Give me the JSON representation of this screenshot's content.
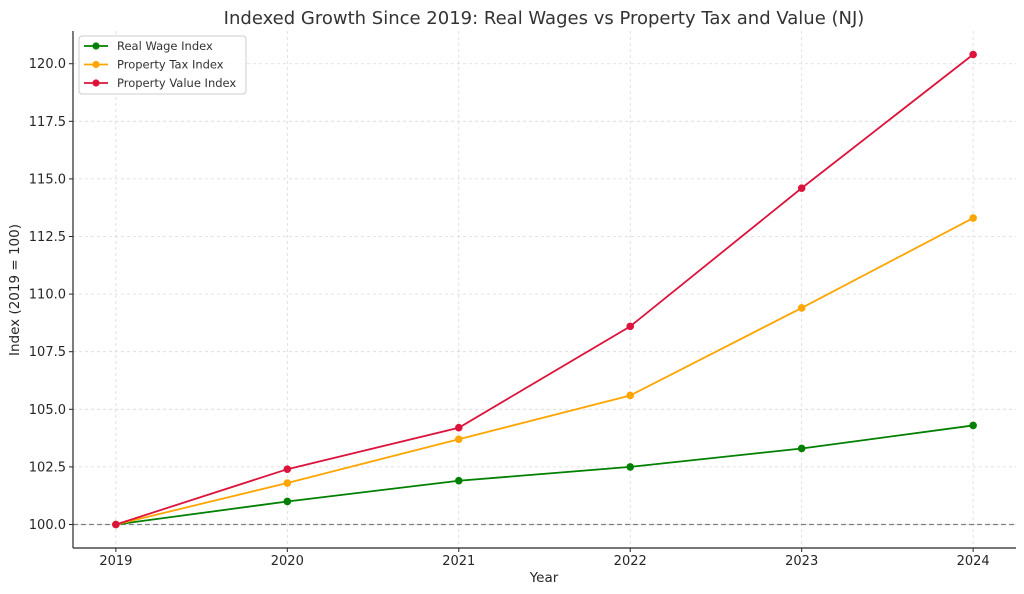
{
  "chart_data": {
    "type": "line",
    "title": "Indexed Growth Since 2019: Real Wages vs Property Tax and Value (NJ)",
    "xlabel": "Year",
    "ylabel": "Index (2019 = 100)",
    "x": [
      2019,
      2020,
      2021,
      2022,
      2023,
      2024
    ],
    "x_tick_labels": [
      "2019",
      "2020",
      "2021",
      "2022",
      "2023",
      "2024"
    ],
    "y_ticks": [
      100.0,
      102.5,
      105.0,
      107.5,
      110.0,
      112.5,
      115.0,
      117.5,
      120.0
    ],
    "y_tick_labels": [
      "100.0",
      "102.5",
      "105.0",
      "107.5",
      "110.0",
      "112.5",
      "115.0",
      "117.5",
      "120.0"
    ],
    "ylim": [
      98.98,
      121.42
    ],
    "xlim": [
      2018.75,
      2024.25
    ],
    "grid": true,
    "legend_position": "top-left",
    "reference_line": {
      "y": 100,
      "style": "dashed",
      "color": "#808080"
    },
    "series": [
      {
        "name": "Real Wage Index",
        "color": "#008000",
        "values": [
          100.0,
          101.0,
          101.9,
          102.5,
          103.3,
          104.3
        ]
      },
      {
        "name": "Property Tax Index",
        "color": "#FFA500",
        "values": [
          100.0,
          101.8,
          103.7,
          105.6,
          109.4,
          113.3
        ]
      },
      {
        "name": "Property Value Index",
        "color": "#DC143C",
        "values": [
          100.0,
          102.4,
          104.2,
          108.6,
          114.6,
          120.4
        ]
      }
    ]
  }
}
